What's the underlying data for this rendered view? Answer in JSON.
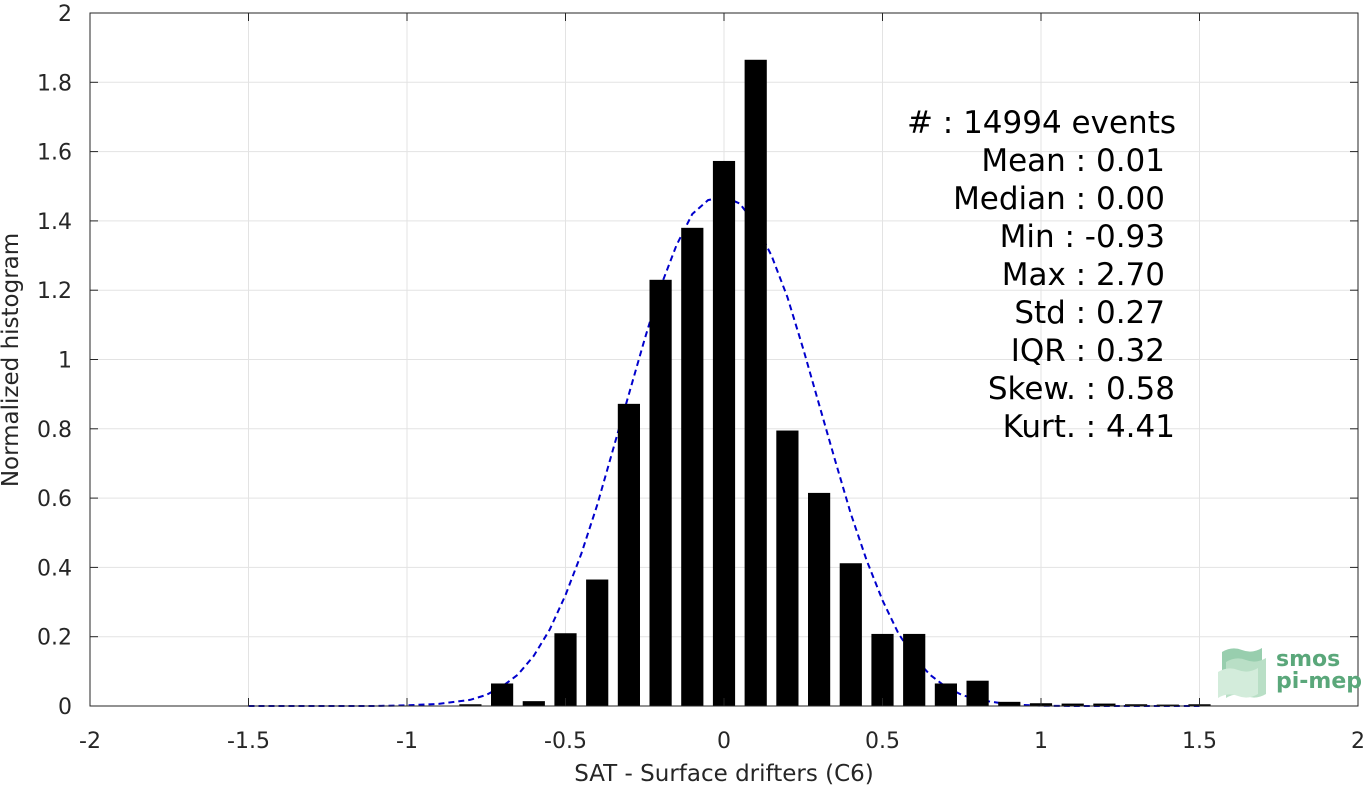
{
  "chart_data": {
    "type": "bar",
    "xlabel": "SAT - Surface drifters (C6)",
    "ylabel": "Normalized histogram",
    "xlim": [
      -2,
      2
    ],
    "ylim": [
      0,
      2
    ],
    "xticks": [
      -2,
      -1.5,
      -1,
      -0.5,
      0,
      0.5,
      1,
      1.5,
      2
    ],
    "xtick_labels": [
      "-2",
      "-1.5",
      "-1",
      "-0.5",
      "0",
      "0.5",
      "1",
      "1.5",
      "2"
    ],
    "yticks": [
      0,
      0.2,
      0.4,
      0.6,
      0.8,
      1,
      1.2,
      1.4,
      1.6,
      1.8,
      2
    ],
    "ytick_labels": [
      "0",
      "0.2",
      "0.4",
      "0.6",
      "0.8",
      "1",
      "1.2",
      "1.4",
      "1.6",
      "1.8",
      "2"
    ],
    "grid": true,
    "bar_width": 0.07,
    "bars": {
      "x": [
        -0.8,
        -0.7,
        -0.6,
        -0.5,
        -0.4,
        -0.3,
        -0.2,
        -0.1,
        0.0,
        0.1,
        0.2,
        0.3,
        0.4,
        0.5,
        0.6,
        0.7,
        0.8,
        0.9,
        1.0,
        1.1,
        1.2,
        1.3,
        1.4,
        1.5
      ],
      "values": [
        0.005,
        0.065,
        0.014,
        0.21,
        0.365,
        0.872,
        1.23,
        1.38,
        1.573,
        1.865,
        0.795,
        0.615,
        0.412,
        0.208,
        0.208,
        0.065,
        0.073,
        0.012,
        0.008,
        0.007,
        0.007,
        0.005,
        0.004,
        0.005
      ],
      "color": "#000000"
    },
    "fit_curve": {
      "style": "dashed",
      "color": "#0000cc",
      "x": [
        -1.5,
        -1.4,
        -1.3,
        -1.2,
        -1.1,
        -1.0,
        -0.9,
        -0.8,
        -0.75,
        -0.7,
        -0.65,
        -0.6,
        -0.55,
        -0.5,
        -0.45,
        -0.4,
        -0.35,
        -0.3,
        -0.25,
        -0.2,
        -0.15,
        -0.1,
        -0.05,
        0.0,
        0.05,
        0.1,
        0.15,
        0.2,
        0.25,
        0.3,
        0.35,
        0.4,
        0.45,
        0.5,
        0.55,
        0.6,
        0.65,
        0.7,
        0.75,
        0.8,
        0.9,
        1.0,
        1.1,
        1.2,
        1.3,
        1.4,
        1.5
      ],
      "y": [
        0.0,
        0.0,
        0.0,
        0.0,
        0.0,
        0.002,
        0.006,
        0.018,
        0.032,
        0.056,
        0.091,
        0.145,
        0.22,
        0.32,
        0.44,
        0.58,
        0.74,
        0.9,
        1.06,
        1.21,
        1.33,
        1.42,
        1.46,
        1.47,
        1.45,
        1.39,
        1.3,
        1.18,
        1.03,
        0.87,
        0.71,
        0.555,
        0.42,
        0.305,
        0.21,
        0.14,
        0.09,
        0.055,
        0.032,
        0.018,
        0.005,
        0.001,
        0.0,
        0.0,
        0.0,
        0.0,
        0.0
      ]
    },
    "annotations": [
      "#  : 14994 events",
      "Mean : 0.01",
      "Median : 0.00",
      "Min : -0.93",
      "Max : 2.70",
      "Std : 0.27",
      "IQR : 0.32",
      "Skew. : 0.58",
      "Kurt. : 4.41"
    ]
  },
  "logo": {
    "line1": "smos",
    "line2": "pi-mep",
    "color": "#5aa77a"
  }
}
